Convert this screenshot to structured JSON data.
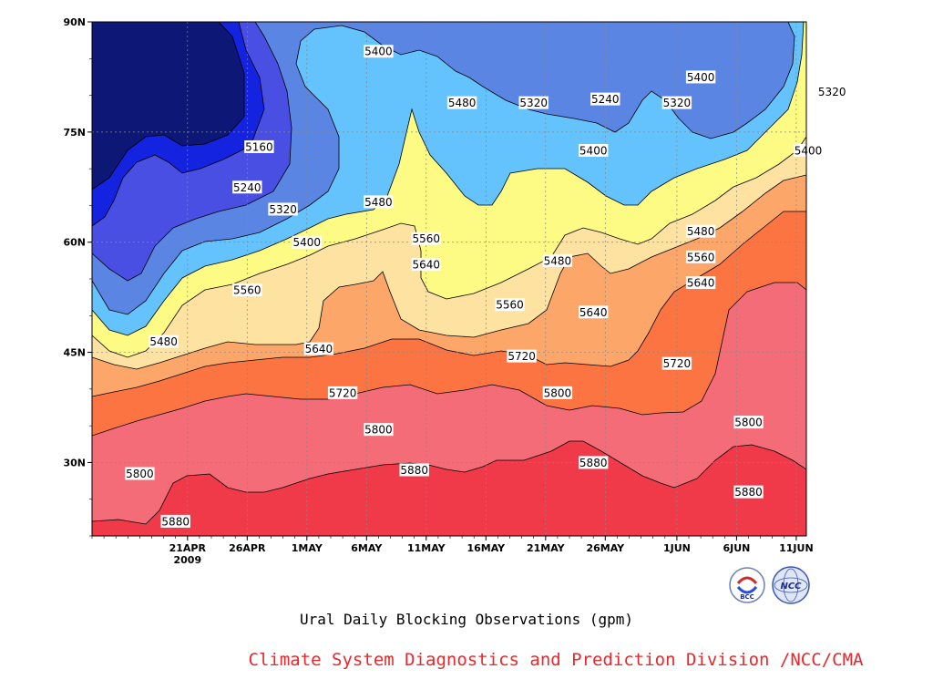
{
  "chart_data": {
    "type": "contour",
    "title": "Ural Daily Blocking Observations (gpm)",
    "units": "gpm",
    "x_tick_labels": [
      "21APR",
      "26APR",
      "1MAY",
      "6MAY",
      "11MAY",
      "16MAY",
      "21MAY",
      "26MAY",
      "1JUN",
      "6JUN",
      "11JUN"
    ],
    "x_year_label": "2009",
    "y_tick_labels": [
      "30N",
      "45N",
      "60N",
      "75N",
      "90N"
    ],
    "ylim": [
      20,
      90
    ],
    "grid": true,
    "levels": [
      5160,
      5240,
      5320,
      5400,
      5480,
      5560,
      5640,
      5720,
      5800,
      5880
    ],
    "fill_colors": [
      "#0c1776",
      "#1423e0",
      "#4a4fe4",
      "#5b85e3",
      "#64c3fd",
      "#fdfb83",
      "#fde2a1",
      "#fda66a",
      "#fc7442",
      "#f36c77",
      "#f03a4a"
    ],
    "contour_labels": [
      {
        "value": "5160",
        "date": "2009-04-27",
        "lat": 73
      },
      {
        "value": "5240",
        "date": "2009-04-26",
        "lat": 67.5
      },
      {
        "value": "5320",
        "date": "2009-04-29",
        "lat": 64.5
      },
      {
        "value": "5400",
        "date": "2009-05-01",
        "lat": 60
      },
      {
        "value": "5480",
        "date": "2009-05-07",
        "lat": 65.5
      },
      {
        "value": "5560",
        "date": "2009-05-11",
        "lat": 60.5
      },
      {
        "value": "5640",
        "date": "2009-05-11",
        "lat": 57
      },
      {
        "value": "5560",
        "date": "2009-04-26",
        "lat": 53.5
      },
      {
        "value": "5480",
        "date": "2009-04-19",
        "lat": 46.5
      },
      {
        "value": "5640",
        "date": "2009-05-02",
        "lat": 45.5
      },
      {
        "value": "5720",
        "date": "2009-05-04",
        "lat": 39.5
      },
      {
        "value": "5800",
        "date": "2009-05-07",
        "lat": 34.5
      },
      {
        "value": "5800",
        "date": "2009-04-17",
        "lat": 28.5
      },
      {
        "value": "5880",
        "date": "2009-04-20",
        "lat": 22
      },
      {
        "value": "5880",
        "date": "2009-05-10",
        "lat": 29
      },
      {
        "value": "5720",
        "date": "2009-05-19",
        "lat": 44.5
      },
      {
        "value": "5800",
        "date": "2009-05-22",
        "lat": 39.5
      },
      {
        "value": "5880",
        "date": "2009-05-25",
        "lat": 30
      },
      {
        "value": "5560",
        "date": "2009-05-18",
        "lat": 51.5
      },
      {
        "value": "5640",
        "date": "2009-05-25",
        "lat": 50.5
      },
      {
        "value": "5480",
        "date": "2009-05-22",
        "lat": 57.5
      },
      {
        "value": "5400",
        "date": "2009-05-07",
        "lat": 86
      },
      {
        "value": "5480",
        "date": "2009-05-14",
        "lat": 79
      },
      {
        "value": "5320",
        "date": "2009-05-20",
        "lat": 79
      },
      {
        "value": "5240",
        "date": "2009-05-26",
        "lat": 79.5
      },
      {
        "value": "5320",
        "date": "2009-06-01",
        "lat": 79
      },
      {
        "value": "5400",
        "date": "2009-05-25",
        "lat": 72.5
      },
      {
        "value": "5400",
        "date": "2009-06-03",
        "lat": 82.5
      },
      {
        "value": "5320",
        "date": "2009-06-14",
        "lat": 80.5
      },
      {
        "value": "5400",
        "date": "2009-06-12",
        "lat": 72.5
      },
      {
        "value": "5480",
        "date": "2009-06-03",
        "lat": 61.5
      },
      {
        "value": "5560",
        "date": "2009-06-03",
        "lat": 58
      },
      {
        "value": "5640",
        "date": "2009-06-03",
        "lat": 54.5
      },
      {
        "value": "5720",
        "date": "2009-06-01",
        "lat": 43.5
      },
      {
        "value": "5800",
        "date": "2009-06-07",
        "lat": 35.5
      },
      {
        "value": "5880",
        "date": "2009-06-07",
        "lat": 26
      }
    ]
  },
  "caption": "Ural Daily Blocking Observations (gpm)",
  "credit": "Climate System Diagnostics and Prediction Division /NCC/CMA",
  "logos": [
    {
      "icon": "bcc-logo-icon",
      "text": "BCC"
    },
    {
      "icon": "ncc-logo-icon",
      "text": "NCC"
    }
  ]
}
